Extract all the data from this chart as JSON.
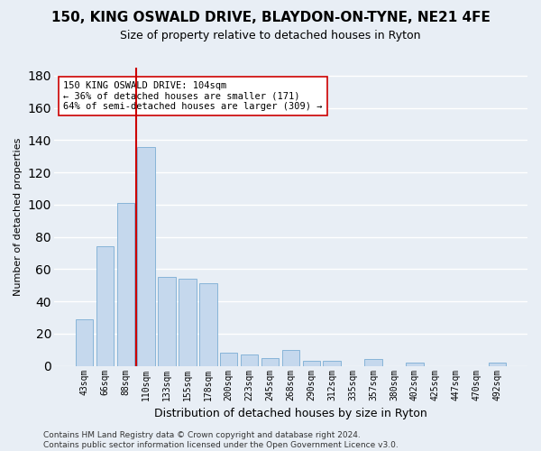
{
  "title": "150, KING OSWALD DRIVE, BLAYDON-ON-TYNE, NE21 4FE",
  "subtitle": "Size of property relative to detached houses in Ryton",
  "xlabel": "Distribution of detached houses by size in Ryton",
  "ylabel": "Number of detached properties",
  "bar_color": "#c5d8ed",
  "bar_edge_color": "#7aadd4",
  "categories": [
    "43sqm",
    "66sqm",
    "88sqm",
    "110sqm",
    "133sqm",
    "155sqm",
    "178sqm",
    "200sqm",
    "223sqm",
    "245sqm",
    "268sqm",
    "290sqm",
    "312sqm",
    "335sqm",
    "357sqm",
    "380sqm",
    "402sqm",
    "425sqm",
    "447sqm",
    "470sqm",
    "492sqm"
  ],
  "values": [
    29,
    74,
    101,
    136,
    55,
    54,
    51,
    8,
    7,
    5,
    10,
    3,
    3,
    0,
    4,
    0,
    2,
    0,
    0,
    0,
    2
  ],
  "vline_x_index": 3,
  "vline_color": "#cc0000",
  "annotation_text": "150 KING OSWALD DRIVE: 104sqm\n← 36% of detached houses are smaller (171)\n64% of semi-detached houses are larger (309) →",
  "annotation_box_color": "#ffffff",
  "annotation_box_edge": "#cc0000",
  "ylim": [
    0,
    185
  ],
  "yticks": [
    0,
    20,
    40,
    60,
    80,
    100,
    120,
    140,
    160,
    180
  ],
  "footer": "Contains HM Land Registry data © Crown copyright and database right 2024.\nContains public sector information licensed under the Open Government Licence v3.0.",
  "background_color": "#e8eef5",
  "grid_color": "#ffffff",
  "title_fontsize": 11,
  "subtitle_fontsize": 9,
  "ylabel_fontsize": 8,
  "xlabel_fontsize": 9,
  "tick_fontsize": 7,
  "annotation_fontsize": 7.5,
  "footer_fontsize": 6.5
}
